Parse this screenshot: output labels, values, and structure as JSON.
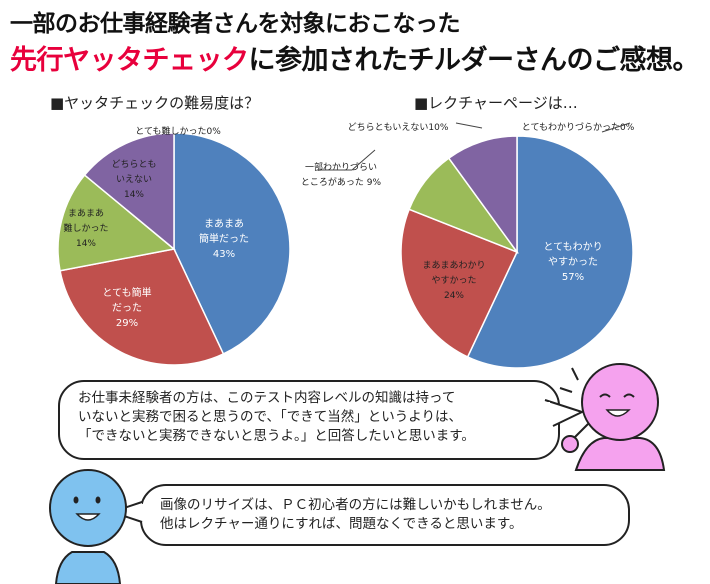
{
  "header": {
    "line1": "一部のお仕事経験者さんを対象におこなった",
    "line2_accent": "先行ヤッタチェック",
    "line2_rest": "に参加されたチルダーさんのご感想。"
  },
  "colors": {
    "accent": "#e8003c",
    "blue": "#4f81bd",
    "red": "#c0504d",
    "green": "#9bbb59",
    "purple": "#8064a2",
    "pink": "#f5a2ee",
    "lightblue": "#7fc2ef"
  },
  "chart_data": [
    {
      "type": "pie",
      "title": "■ヤッタチェックの難易度は？",
      "slices": [
        {
          "label_lines": [
            "まあまあ",
            "簡単だった"
          ],
          "pct_text": "43%",
          "value": 43,
          "color": "#4f81bd"
        },
        {
          "label_lines": [
            "とても簡単",
            "だった"
          ],
          "pct_text": "29%",
          "value": 29,
          "color": "#c0504d"
        },
        {
          "label_lines": [
            "まあまあ",
            "難しかった"
          ],
          "pct_text": "14%",
          "value": 14,
          "color": "#9bbb59"
        },
        {
          "label_lines": [
            "どちらとも",
            "いえない"
          ],
          "pct_text": "14%",
          "value": 14,
          "color": "#8064a2"
        },
        {
          "label_lines": [
            "とても難しかった"
          ],
          "pct_text": "0%",
          "value": 0,
          "color": "#888888"
        }
      ]
    },
    {
      "type": "pie",
      "title": "■レクチャーページは…",
      "slices": [
        {
          "label_lines": [
            "とてもわかり",
            "やすかった"
          ],
          "pct_text": "57%",
          "value": 57,
          "color": "#4f81bd"
        },
        {
          "label_lines": [
            "まあまあわかり",
            "やすかった"
          ],
          "pct_text": "24%",
          "value": 24,
          "color": "#c0504d"
        },
        {
          "label_lines": [
            "一部わかりづらい",
            "ところがあった"
          ],
          "pct_text": "9%",
          "value": 9,
          "color": "#9bbb59"
        },
        {
          "label_lines": [
            "どちらともいえない"
          ],
          "pct_text": "10%",
          "value": 10,
          "color": "#8064a2"
        },
        {
          "label_lines": [
            "とてもわかりづらかった"
          ],
          "pct_text": "0%",
          "value": 0,
          "color": "#888888"
        }
      ]
    }
  ],
  "comments": [
    {
      "lines": [
        "お仕事未経験者の方は、このテスト内容レベルの知識は持って",
        "いないと実務で困ると思うので、「できて当然」というよりは、",
        "「できないと実務できないと思うよ。」と回答したいと思います。"
      ]
    },
    {
      "lines": [
        "画像のリサイズは、ＰＣ初心者の方には難しいかもしれません。",
        "他はレクチャー通りにすれば、問題なくできると思います。"
      ]
    }
  ]
}
